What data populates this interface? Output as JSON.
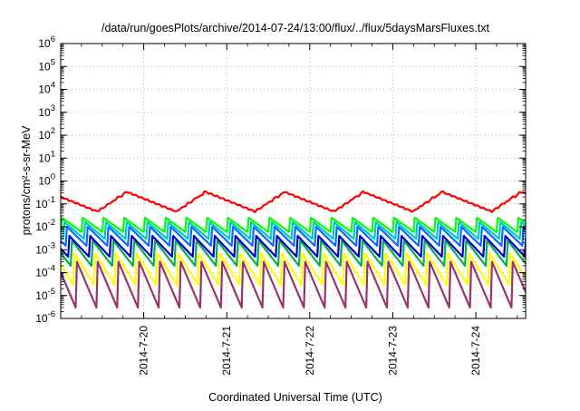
{
  "chart_data": {
    "type": "line",
    "title": "/data/run/goesPlots/archive/2014-07-24/13:00/flux/../flux/5daysMarsFluxes.txt",
    "xlabel": "Coordinated Universal Time (UTC)",
    "ylabel": "protons/cm²-s-sr-MeV",
    "y_scale": "log",
    "ylim_exponents": [
      -6,
      6
    ],
    "y_ticks": [
      {
        "base": "10",
        "exp": "6"
      },
      {
        "base": "10",
        "exp": "5"
      },
      {
        "base": "10",
        "exp": "4"
      },
      {
        "base": "10",
        "exp": "3"
      },
      {
        "base": "10",
        "exp": "2"
      },
      {
        "base": "10",
        "exp": "1"
      },
      {
        "base": "10",
        "exp": "0"
      },
      {
        "base": "10",
        "exp": "-1"
      },
      {
        "base": "10",
        "exp": "-2"
      },
      {
        "base": "10",
        "exp": "-3"
      },
      {
        "base": "10",
        "exp": "-4"
      },
      {
        "base": "10",
        "exp": "-5"
      },
      {
        "base": "10",
        "exp": "-6"
      }
    ],
    "x_ticks": [
      "2014-7-20",
      "2014-7-21",
      "2014-7-22",
      "2014-7-23",
      "2014-7-24"
    ],
    "x_range_days": [
      19.0,
      24.6
    ],
    "grid": true,
    "series": [
      {
        "color": "#ff0000",
        "low": 0.045,
        "high": 0.35,
        "period_days": 0.95,
        "phase": 0.45,
        "teeth": 9
      },
      {
        "color": "#00ff00",
        "low": 0.006,
        "high": 0.025,
        "period_days": 0.25,
        "phase": 0.0,
        "teeth": 1
      },
      {
        "color": "#00c8c8",
        "low": 0.003,
        "high": 0.016,
        "period_days": 0.25,
        "phase": 0.03,
        "teeth": 1
      },
      {
        "color": "#0070ff",
        "low": 0.0015,
        "high": 0.01,
        "period_days": 0.25,
        "phase": 0.06,
        "teeth": 1
      },
      {
        "color": "#0000c8",
        "low": 0.0005,
        "high": 0.004,
        "period_days": 0.25,
        "phase": 0.09,
        "teeth": 1
      },
      {
        "color": "#00b050",
        "low": 0.0002,
        "high": 0.0025,
        "period_days": 0.25,
        "phase": 0.12,
        "teeth": 1
      },
      {
        "color": "#ffff00",
        "low": 3e-05,
        "high": 0.0007,
        "period_days": 0.25,
        "phase": 0.15,
        "teeth": 1
      },
      {
        "color": "#993366",
        "low": 3e-06,
        "high": 0.0003,
        "period_days": 0.25,
        "phase": 0.18,
        "teeth": 1
      }
    ]
  }
}
